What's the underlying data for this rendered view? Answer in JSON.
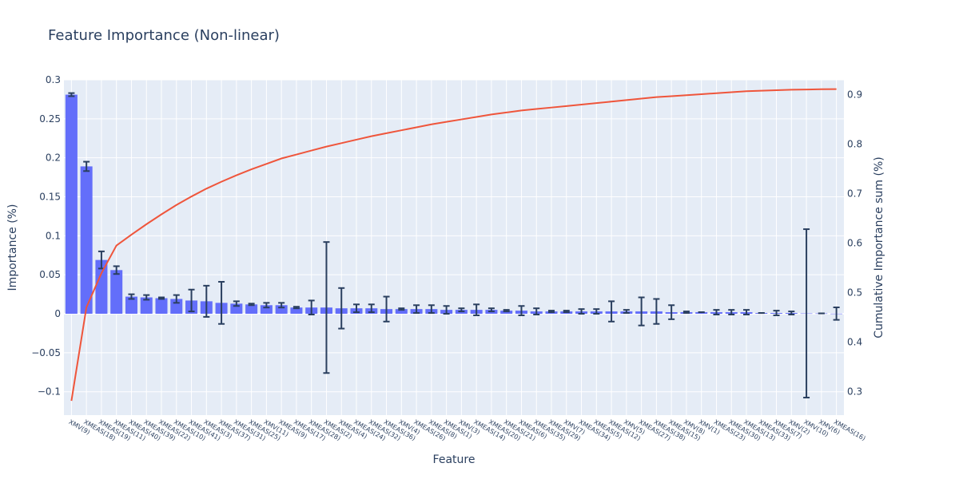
{
  "chart_data": {
    "type": "bar",
    "title": "Feature Importance (Non-linear)",
    "xlabel": "Feature",
    "ylabel": "Importance (%)",
    "y2label": "Cumulative Importance sum (%)",
    "ylim": [
      -0.13,
      0.3
    ],
    "yticks": [
      -0.1,
      -0.05,
      0,
      0.05,
      0.1,
      0.15,
      0.2,
      0.25,
      0.3
    ],
    "ytick_labels": [
      "−0.1",
      "−0.05",
      "0",
      "0.05",
      "0.1",
      "0.15",
      "0.2",
      "0.25",
      "0.3"
    ],
    "y2lim": [
      0.252,
      0.93
    ],
    "y2ticks": [
      0.3,
      0.4,
      0.5,
      0.6,
      0.7,
      0.8,
      0.9
    ],
    "y2tick_labels": [
      "0.3",
      "0.4",
      "0.5",
      "0.6",
      "0.7",
      "0.8",
      "0.9"
    ],
    "grid": true,
    "categories": [
      "XMV(9)",
      "XMEAS(18)",
      "XMEAS(19)",
      "XMEAS(11)",
      "XMEAS(40)",
      "XMEAS(39)",
      "XMEAS(22)",
      "XMEAS(10)",
      "XMEAS(41)",
      "XMEAS(3)",
      "XMEAS(37)",
      "XMEAS(31)",
      "XMEAS(25)",
      "XMV(11)",
      "XMEAS(9)",
      "XMEAS(17)",
      "XMEAS(28)",
      "XMEAS(2)",
      "XMEAS(4)",
      "XMEAS(24)",
      "XMEAS(32)",
      "XMEAS(36)",
      "XMV(4)",
      "XMEAS(26)",
      "XMEAS(8)",
      "XMEAS(1)",
      "XMV(3)",
      "XMEAS(14)",
      "XMEAS(20)",
      "XMEAS(21)",
      "XMEAS(6)",
      "XMEAS(35)",
      "XMEAS(29)",
      "XMV(7)",
      "XMEAS(34)",
      "XMEAS(5)",
      "XMEAS(12)",
      "XMV(5)",
      "XMEAS(27)",
      "XMEAS(38)",
      "XMEAS(15)",
      "XMV(8)",
      "XMV(1)",
      "XMEAS(23)",
      "XMEAS(30)",
      "XMEAS(13)",
      "XMEAS(33)",
      "XMEAS(7)",
      "XMV(2)",
      "XMV(10)",
      "XMV(6)",
      "XMEAS(16)"
    ],
    "series": [
      {
        "values": [
          0.281,
          0.189,
          0.069,
          0.056,
          0.022,
          0.021,
          0.02,
          0.019,
          0.017,
          0.016,
          0.014,
          0.013,
          0.012,
          0.011,
          0.011,
          0.008,
          0.008,
          0.008,
          0.007,
          0.007,
          0.007,
          0.006,
          0.006,
          0.006,
          0.006,
          0.005,
          0.005,
          0.005,
          0.005,
          0.004,
          0.004,
          0.003,
          0.003,
          0.003,
          0.003,
          0.003,
          0.003,
          0.003,
          0.003,
          0.003,
          0.002,
          0.002,
          0.002,
          0.002,
          0.002,
          0.002,
          0.001,
          0.001,
          0.001,
          0.0005,
          0.0005,
          0.0002
        ],
        "errors": [
          0.002,
          0.006,
          0.011,
          0.005,
          0.003,
          0.003,
          0.001,
          0.005,
          0.014,
          0.02,
          0.027,
          0.003,
          0.001,
          0.003,
          0.003,
          0.001,
          0.009,
          0.084,
          0.026,
          0.005,
          0.005,
          0.016,
          0.001,
          0.005,
          0.005,
          0.005,
          0.002,
          0.007,
          0.002,
          0.001,
          0.006,
          0.004,
          0.001,
          0.001,
          0.003,
          0.003,
          0.013,
          0.002,
          0.018,
          0.016,
          0.009,
          0.001,
          0.0,
          0.003,
          0.003,
          0.003,
          0.0,
          0.003,
          0.002,
          0.108,
          0.0,
          0.008
        ]
      },
      {
        "values": [
          0.281,
          0.47,
          0.539,
          0.595,
          0.617,
          0.638,
          0.658,
          0.677,
          0.694,
          0.71,
          0.724,
          0.737,
          0.749,
          0.76,
          0.771,
          0.779,
          0.787,
          0.795,
          0.802,
          0.809,
          0.816,
          0.822,
          0.828,
          0.834,
          0.84,
          0.845,
          0.85,
          0.855,
          0.86,
          0.864,
          0.868,
          0.871,
          0.874,
          0.877,
          0.88,
          0.883,
          0.886,
          0.889,
          0.892,
          0.895,
          0.897,
          0.899,
          0.901,
          0.903,
          0.905,
          0.907,
          0.908,
          0.909,
          0.91,
          0.9105,
          0.911,
          0.9112
        ]
      }
    ],
    "colors": {
      "bar": "#636efa",
      "line": "#ef553b",
      "error": "#2a3f5f",
      "plot_bg": "#e5ecf6",
      "grid": "#ffffff",
      "text": "#2a3f5f"
    }
  }
}
